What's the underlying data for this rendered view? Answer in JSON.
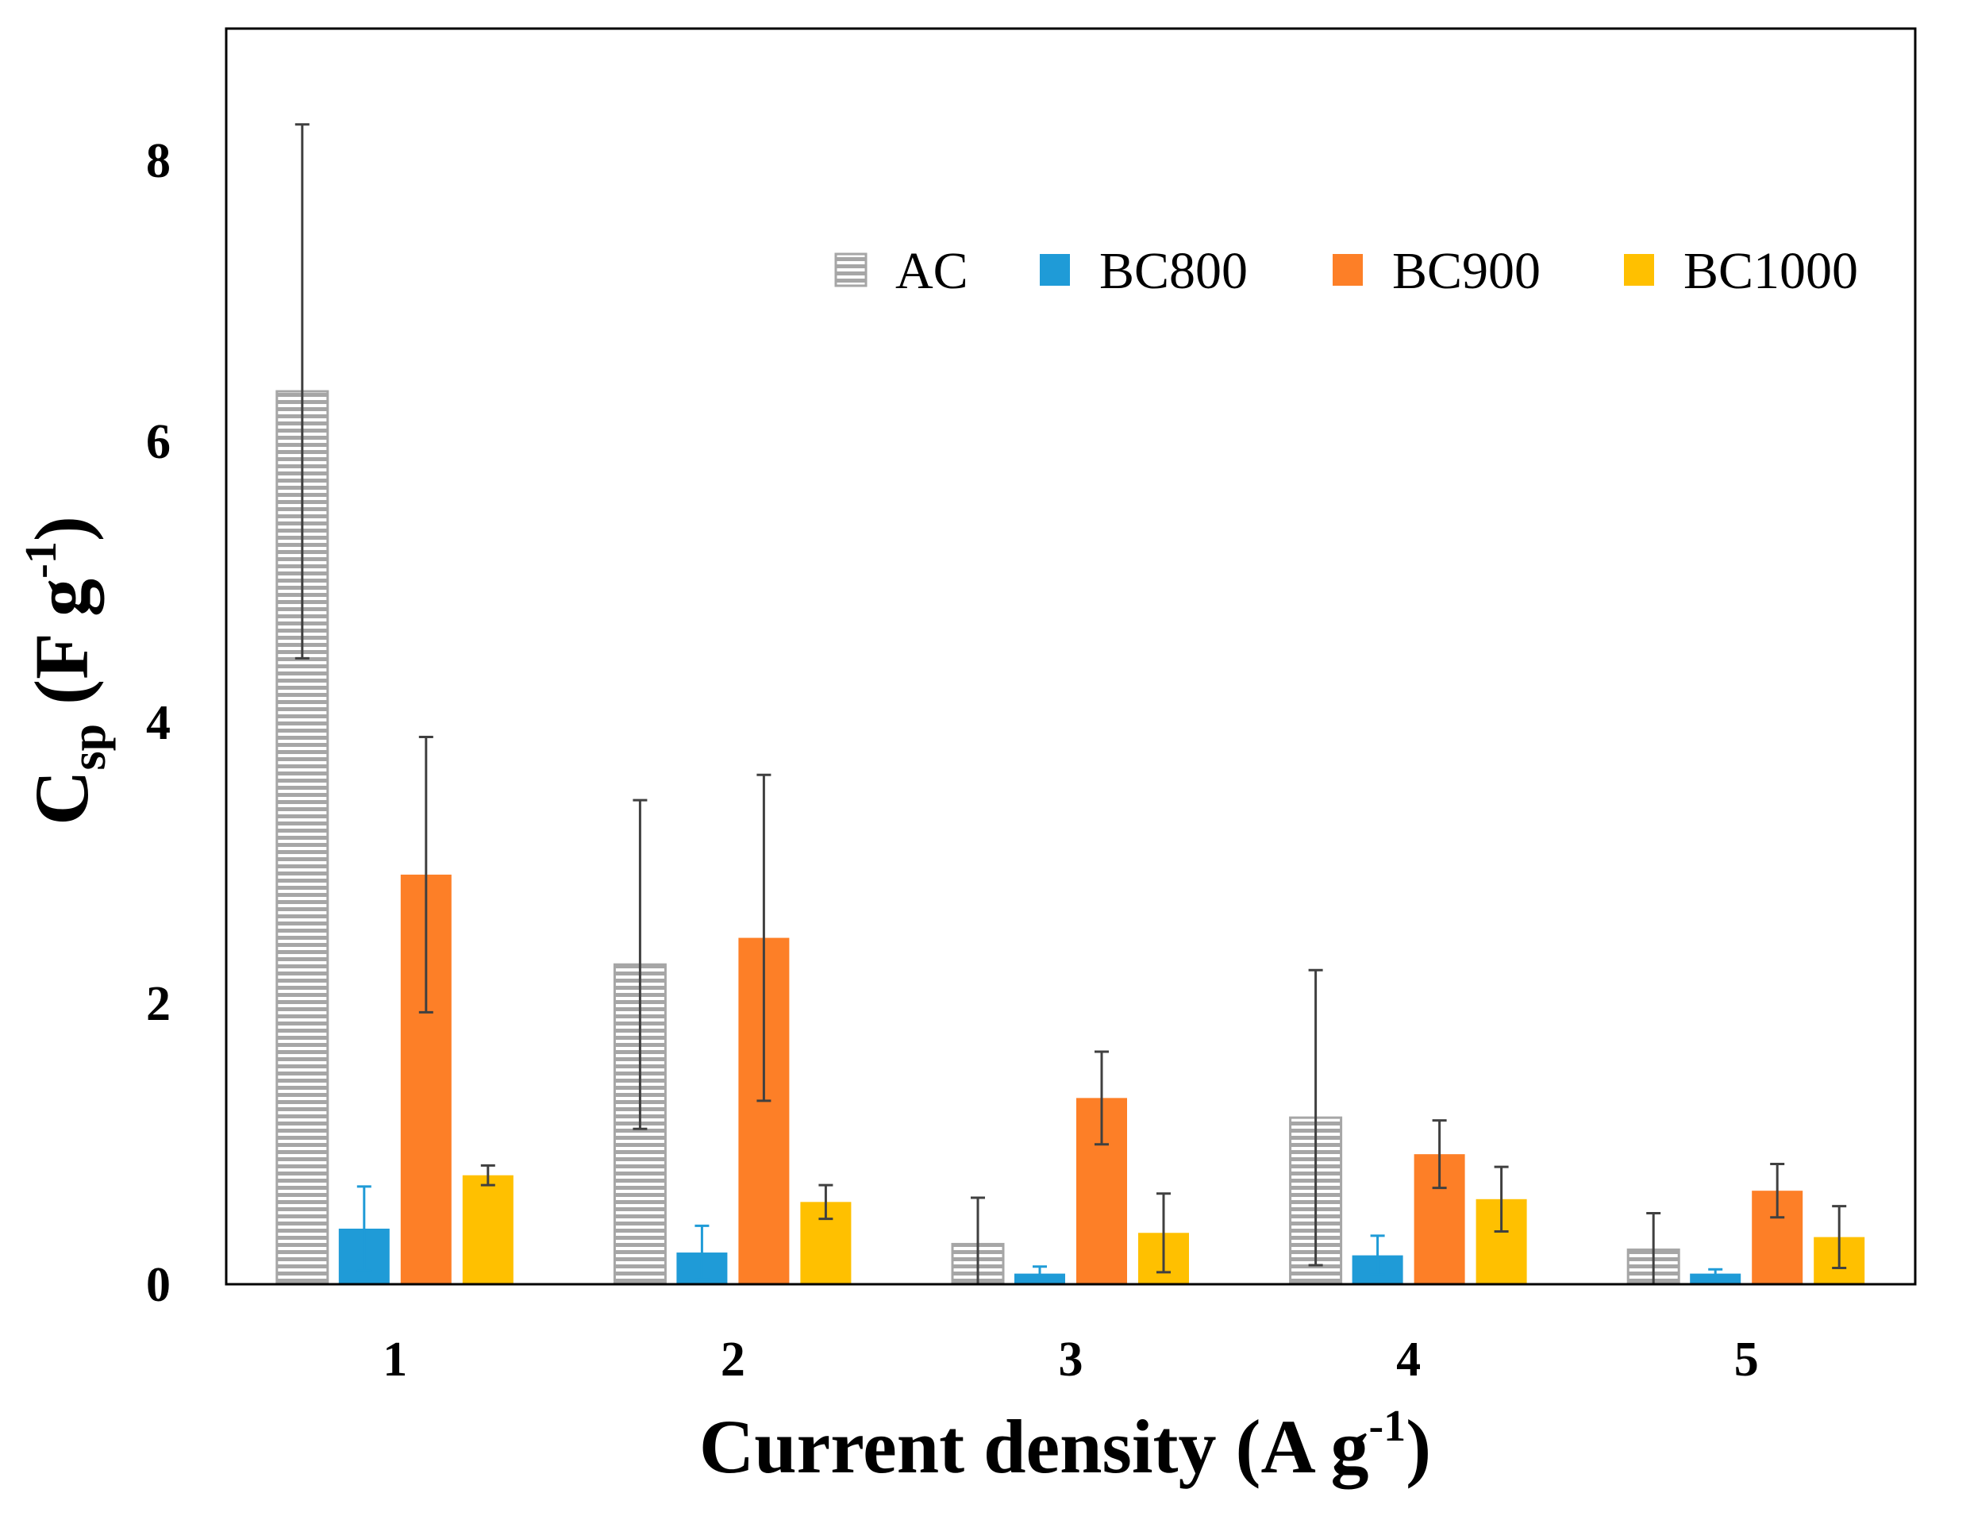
{
  "chart_data": {
    "type": "bar",
    "title": "",
    "xlabel": {
      "main": "Current density (A g",
      "sup": "-1",
      "close": ")"
    },
    "ylabel": {
      "main": "C",
      "sub": "sp",
      "unit": " (F g",
      "sup": "-1",
      "close": ")"
    },
    "categories": [
      "1",
      "2",
      "3",
      "4",
      "5"
    ],
    "ylim": [
      0,
      9
    ],
    "yticks": [
      0,
      2,
      4,
      6,
      8
    ],
    "legend_position": "top-right",
    "series": [
      {
        "name": "AC",
        "color": "#a6a6a6",
        "pattern": "horizontal-stripes",
        "values": [
          6.35,
          2.27,
          0.28,
          1.18,
          0.24
        ],
        "errors": [
          1.9,
          1.17,
          0.33,
          1.05,
          0.26
        ]
      },
      {
        "name": "BC800",
        "color": "#1f9bd7",
        "values": [
          0.39,
          0.22,
          0.07,
          0.2,
          0.07
        ],
        "errors": [
          0.3,
          0.19,
          0.05,
          0.14,
          0.03
        ]
      },
      {
        "name": "BC900",
        "color": "#fd7f27",
        "values": [
          2.91,
          2.46,
          1.32,
          0.92,
          0.66
        ],
        "errors": [
          0.98,
          1.16,
          0.33,
          0.24,
          0.19
        ]
      },
      {
        "name": "BC1000",
        "color": "#ffc000",
        "values": [
          0.77,
          0.58,
          0.36,
          0.6,
          0.33
        ],
        "errors": [
          0.07,
          0.12,
          0.28,
          0.23,
          0.22
        ]
      }
    ]
  }
}
